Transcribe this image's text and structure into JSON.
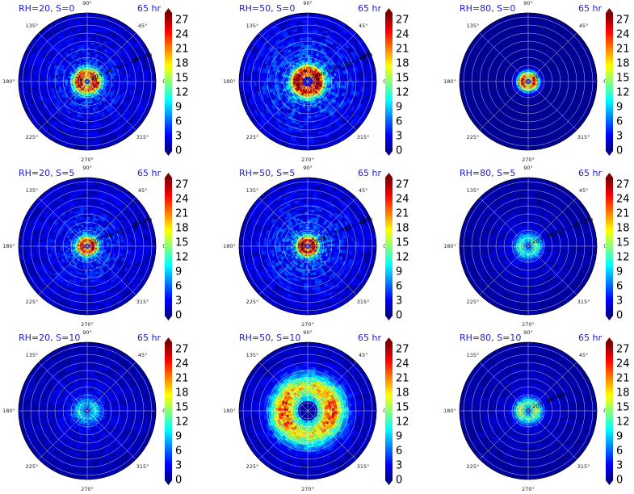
{
  "figure": {
    "type": "polar-filled-contour-grid",
    "rows": 3,
    "cols": 3,
    "colormap": "jet",
    "colorbar": {
      "min": 0,
      "max": 28.5,
      "extend": "both",
      "ticks": [
        "0",
        "3",
        "6",
        "9",
        "12",
        "15",
        "18",
        "21",
        "24",
        "27"
      ]
    },
    "angle_labels": [
      "0°",
      "45°",
      "90°",
      "135°",
      "180°",
      "225°",
      "270°",
      "315°"
    ],
    "radial_labels": [
      "20",
      "40",
      "60",
      "80",
      "100",
      "120",
      "140",
      "160"
    ],
    "panels": [
      {
        "title": "RH=20, S=0",
        "time": "65 hr",
        "rh": 20,
        "shear": 0,
        "radial_labels": [
          "20",
          "40",
          "60",
          "80",
          "100",
          "120",
          "140",
          "160"
        ]
      },
      {
        "title": "RH=50, S=0",
        "time": "65 hr",
        "rh": 50,
        "shear": 0,
        "radial_labels": [
          "20",
          "40",
          "60",
          "80",
          "100",
          "120",
          "140",
          "160"
        ]
      },
      {
        "title": "RH=80, S=0",
        "time": "65 hr",
        "rh": 80,
        "shear": 0,
        "radial_labels": [
          "20"
        ]
      },
      {
        "title": "RH=20, S=5",
        "time": "65 hr",
        "rh": 20,
        "shear": 5,
        "radial_labels": [
          "20",
          "40",
          "60",
          "80",
          "100",
          "120",
          "140",
          "160"
        ]
      },
      {
        "title": "RH=50, S=5",
        "time": "65 hr",
        "rh": 50,
        "shear": 5,
        "radial_labels": [
          "20",
          "40",
          "60",
          "80",
          "100",
          "120",
          "140",
          "160"
        ]
      },
      {
        "title": "RH=80, S=5",
        "time": "65 hr",
        "rh": 80,
        "shear": 5,
        "radial_labels": [
          "20",
          "40",
          "60",
          "80",
          "100",
          "120",
          "140",
          "160"
        ]
      },
      {
        "title": "RH=20, S=10",
        "time": "65 hr",
        "rh": 20,
        "shear": 10,
        "radial_labels": []
      },
      {
        "title": "RH=50, S=10",
        "time": "65 hr",
        "rh": 50,
        "shear": 10,
        "radial_labels": []
      },
      {
        "title": "RH=80, S=10",
        "time": "65 hr",
        "rh": 80,
        "shear": 10,
        "radial_labels": [
          "20",
          "40",
          "60",
          "80",
          "100"
        ]
      }
    ]
  },
  "chart_data": [
    {
      "type": "heatmap",
      "projection": "polar",
      "title": "RH=20, S=0",
      "time": "65 hr",
      "theta_ticks_deg": [
        0,
        45,
        90,
        135,
        180,
        225,
        270,
        315
      ],
      "r_ticks": [
        20,
        40,
        60,
        80,
        100,
        120,
        140,
        160
      ],
      "value_range": [
        0,
        28.5
      ],
      "eyewall_radius": 20,
      "eyewall_max": 26,
      "background_level": 6
    },
    {
      "type": "heatmap",
      "projection": "polar",
      "title": "RH=50, S=0",
      "time": "65 hr",
      "theta_ticks_deg": [
        0,
        45,
        90,
        135,
        180,
        225,
        270,
        315
      ],
      "r_ticks": [
        20,
        40,
        60,
        80,
        100,
        120,
        140,
        160
      ],
      "value_range": [
        0,
        28.5
      ],
      "eyewall_radius": 25,
      "eyewall_max": 27,
      "background_level": 8
    },
    {
      "type": "heatmap",
      "projection": "polar",
      "title": "RH=80, S=0",
      "time": "65 hr",
      "theta_ticks_deg": [
        0,
        45,
        90,
        135,
        180,
        225,
        270,
        315
      ],
      "r_ticks": [
        20
      ],
      "value_range": [
        0,
        28.5
      ],
      "eyewall_radius": 15,
      "eyewall_max": 27,
      "background_level": 1
    },
    {
      "type": "heatmap",
      "projection": "polar",
      "title": "RH=20, S=5",
      "time": "65 hr",
      "theta_ticks_deg": [
        0,
        45,
        90,
        135,
        180,
        225,
        270,
        315
      ],
      "r_ticks": [
        20,
        40,
        60,
        80,
        100,
        120,
        140,
        160
      ],
      "value_range": [
        0,
        28.5
      ],
      "eyewall_radius": 15,
      "eyewall_max": 24,
      "background_level": 6
    },
    {
      "type": "heatmap",
      "projection": "polar",
      "title": "RH=50, S=5",
      "time": "65 hr",
      "theta_ticks_deg": [
        0,
        45,
        90,
        135,
        180,
        225,
        270,
        315
      ],
      "r_ticks": [
        20,
        40,
        60,
        80,
        100,
        120,
        140,
        160
      ],
      "value_range": [
        0,
        28.5
      ],
      "eyewall_radius": 15,
      "eyewall_max": 27,
      "background_level": 7
    },
    {
      "type": "heatmap",
      "projection": "polar",
      "title": "RH=80, S=5",
      "time": "65 hr",
      "theta_ticks_deg": [
        0,
        45,
        90,
        135,
        180,
        225,
        270,
        315
      ],
      "r_ticks": [
        20,
        40,
        60,
        80,
        100,
        120,
        140,
        160
      ],
      "value_range": [
        0,
        28.5
      ],
      "eyewall_radius": 20,
      "eyewall_max": 12,
      "background_level": 3
    },
    {
      "type": "heatmap",
      "projection": "polar",
      "title": "RH=20, S=10",
      "time": "65 hr",
      "theta_ticks_deg": [
        0,
        45,
        90,
        135,
        180,
        225,
        270,
        315
      ],
      "r_ticks": [],
      "value_range": [
        0,
        28.5
      ],
      "eyewall_radius": 20,
      "eyewall_max": 8,
      "background_level": 4
    },
    {
      "type": "heatmap",
      "projection": "polar",
      "title": "RH=50, S=10",
      "time": "65 hr",
      "theta_ticks_deg": [
        0,
        45,
        90,
        135,
        180,
        225,
        270,
        315
      ],
      "r_ticks": [],
      "value_range": [
        0,
        28.5
      ],
      "eyewall_radius": 60,
      "eyewall_max": 21,
      "background_level": 5
    },
    {
      "type": "heatmap",
      "projection": "polar",
      "title": "RH=80, S=10",
      "time": "65 hr",
      "theta_ticks_deg": [
        0,
        45,
        90,
        135,
        180,
        225,
        270,
        315
      ],
      "r_ticks": [
        20,
        40,
        60,
        80,
        100
      ],
      "value_range": [
        0,
        28.5
      ],
      "eyewall_radius": 20,
      "eyewall_max": 15,
      "background_level": 3
    }
  ]
}
